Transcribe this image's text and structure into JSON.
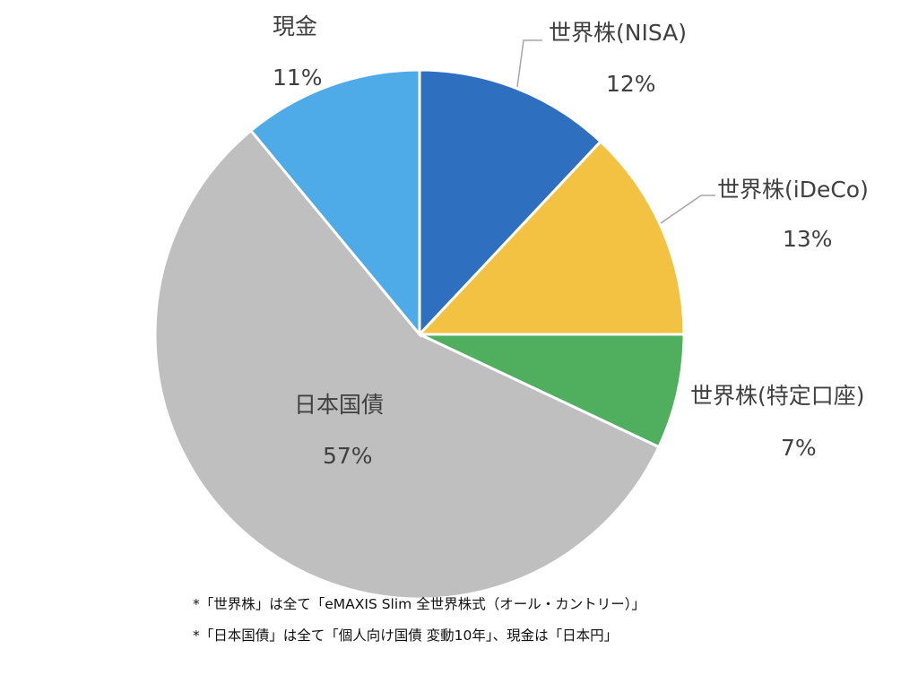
{
  "chart_data": {
    "type": "pie",
    "slices": [
      {
        "label": "世界株(NISA)",
        "value_label": "12%",
        "value": 12,
        "color": "#2e6fbf"
      },
      {
        "label": "世界株(iDeCo)",
        "value_label": "13%",
        "value": 13,
        "color": "#f4c242"
      },
      {
        "label": "世界株(特定口座)",
        "value_label": "7%",
        "value": 7,
        "color": "#4faf5f"
      },
      {
        "label": "日本国債",
        "value_label": "57%",
        "value": 57,
        "color": "#bfbfbf"
      },
      {
        "label": "現金",
        "value_label": "11%",
        "value": 11,
        "color": "#4faae8"
      }
    ],
    "start_angle_deg": 0,
    "direction": "clockwise"
  },
  "notes": [
    "*「世界株」は全て「eMAXIS Slim 全世界株式（オール・カントリー）」",
    "*「日本国債」は全て「個人向け国債 変動10年」、現金は「日本円」"
  ]
}
